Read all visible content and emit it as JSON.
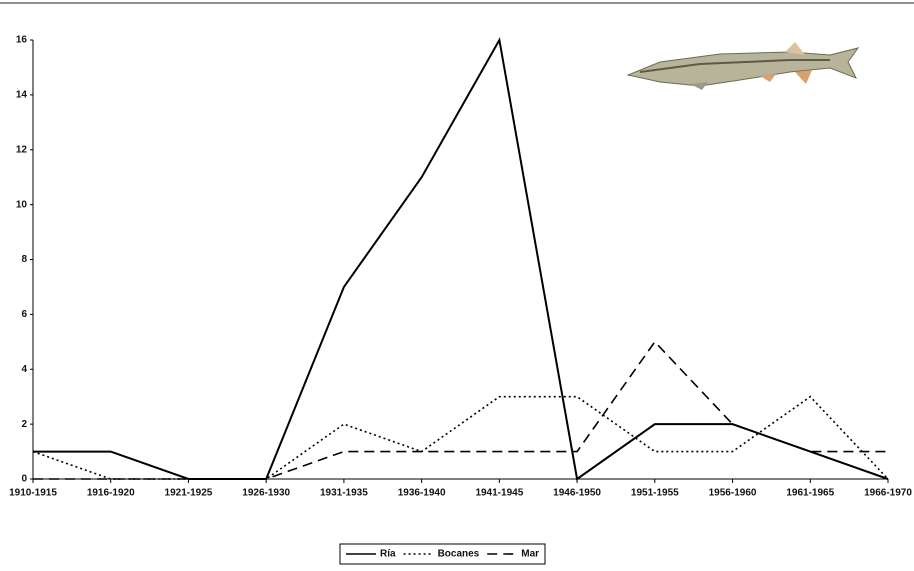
{
  "chart_data": {
    "type": "line",
    "categories": [
      "1910-1915",
      "1916-1920",
      "1921-1925",
      "1926-1930",
      "1931-1935",
      "1936-1940",
      "1941-1945",
      "1946-1950",
      "1951-1955",
      "1956-1960",
      "1961-1965",
      "1966-1970"
    ],
    "series": [
      {
        "name": "Ría",
        "color": "#000000",
        "style": "solid",
        "values": [
          1,
          1,
          0,
          0,
          7,
          11,
          16,
          0,
          2,
          2,
          1,
          0
        ]
      },
      {
        "name": "Bocanes",
        "color": "#000000",
        "style": "dotted",
        "values": [
          1,
          0,
          0,
          0,
          2,
          1,
          3,
          3,
          1,
          1,
          3,
          0
        ]
      },
      {
        "name": "Mar",
        "color": "#000000",
        "style": "dashed",
        "values": [
          0,
          0,
          0,
          0,
          1,
          1,
          1,
          1,
          5,
          2,
          1,
          1
        ]
      }
    ],
    "ylim": [
      0,
      16
    ],
    "yticks": [
      0,
      2,
      4,
      6,
      8,
      10,
      12,
      14,
      16
    ],
    "grid": false,
    "legend": "bottom"
  }
}
